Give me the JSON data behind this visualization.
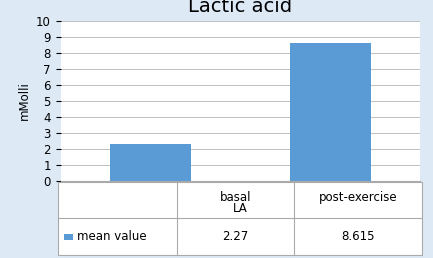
{
  "title": "Lactic acid",
  "categories": [
    "basal",
    "post-exercise"
  ],
  "values": [
    2.27,
    8.615
  ],
  "xlabel": "LA",
  "ylabel": "mMolli",
  "ylim": [
    0,
    10
  ],
  "yticks": [
    0,
    1,
    2,
    3,
    4,
    5,
    6,
    7,
    8,
    9,
    10
  ],
  "bar_color": "#5B9BD5",
  "background_color": "#FFFFFF",
  "outer_background": "#DDEAF6",
  "legend_label": "mean value",
  "legend_values": [
    "2.27",
    "8.615"
  ],
  "title_fontsize": 14,
  "axis_fontsize": 8.5,
  "label_fontsize": 8.5,
  "bar_width": 0.45,
  "col_dividers": [
    0.255,
    0.628
  ],
  "table_row_label": [
    "basal",
    "post-exercise"
  ]
}
